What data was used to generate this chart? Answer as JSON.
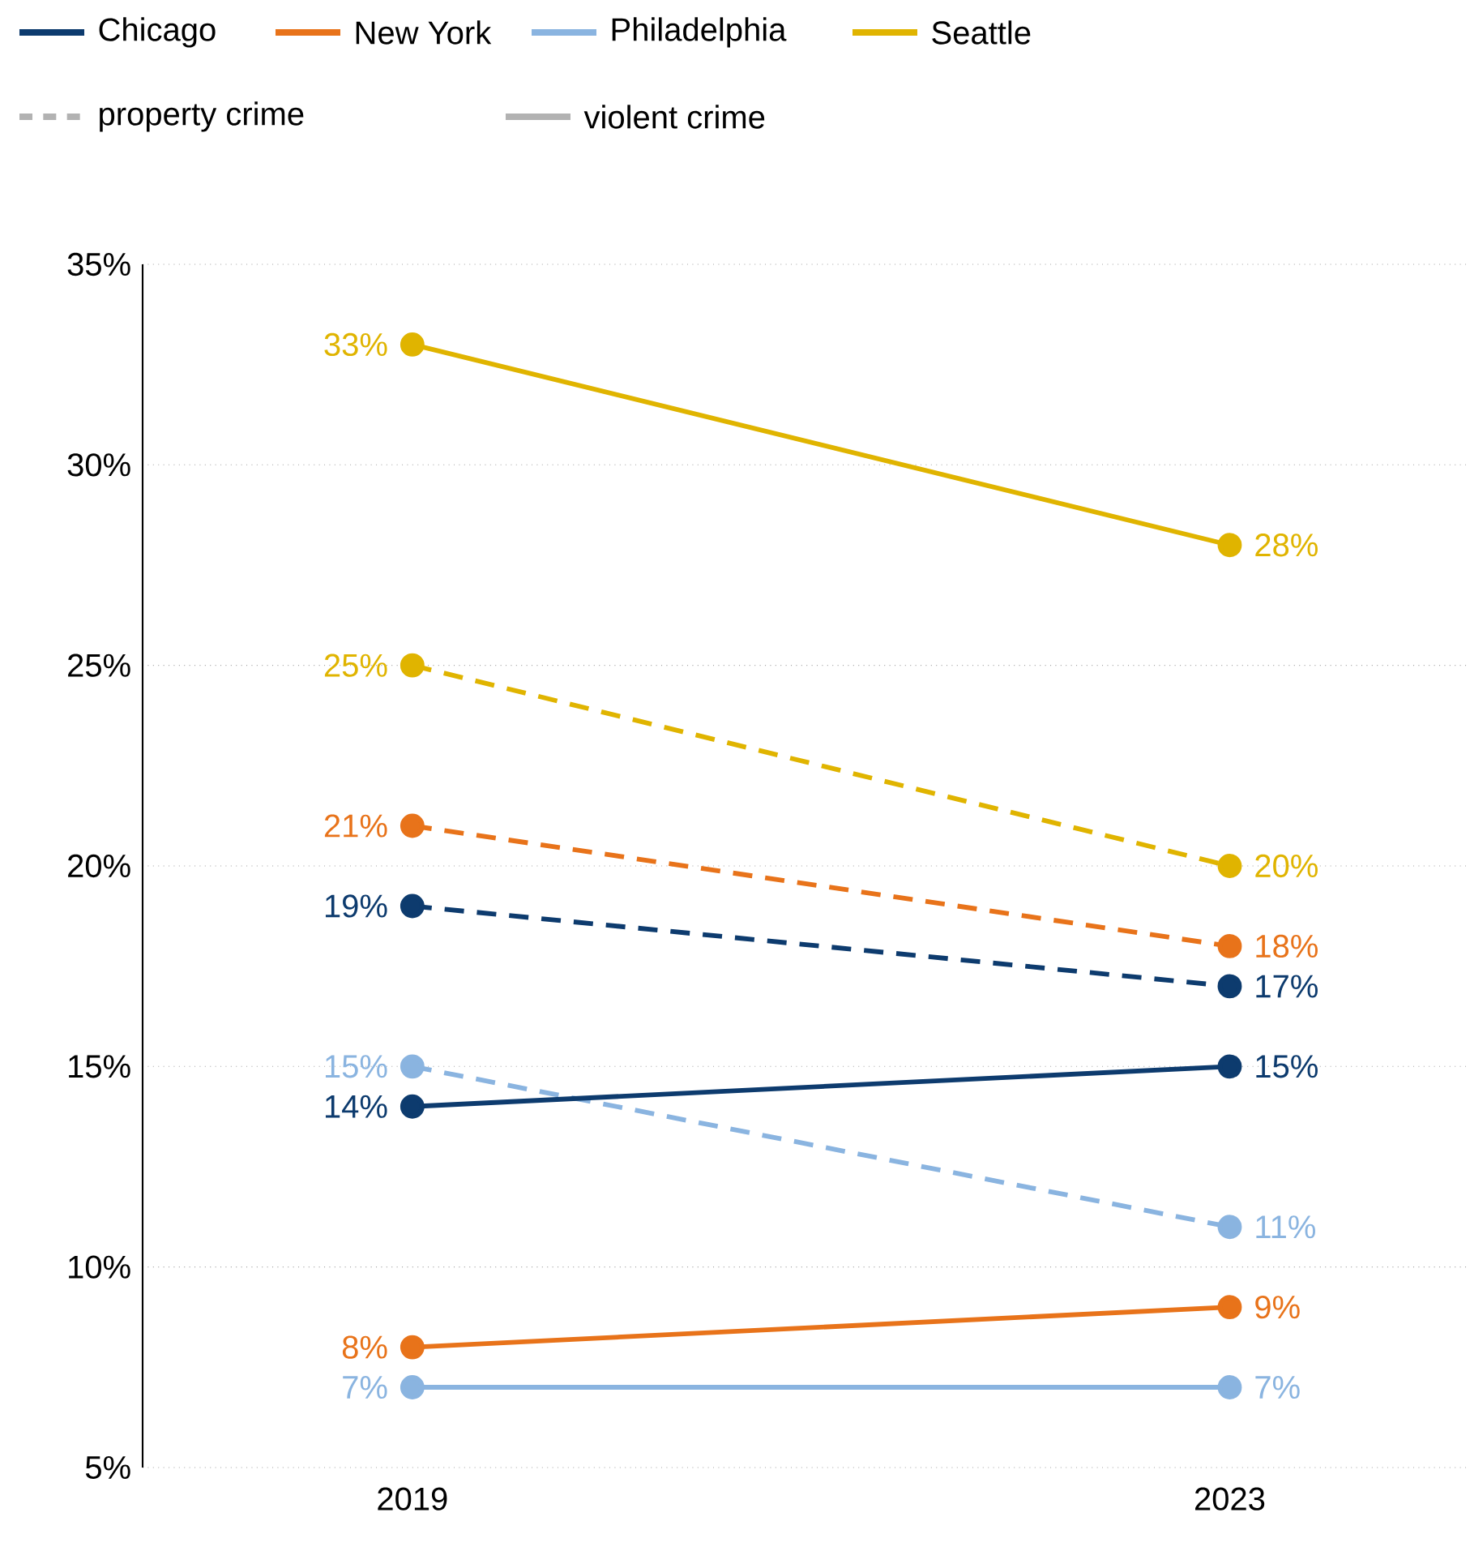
{
  "chart_data": {
    "type": "line",
    "categories": [
      "2019",
      "2023"
    ],
    "ylim": [
      5,
      35
    ],
    "yticks": [
      {
        "value": 5,
        "label": "5%"
      },
      {
        "value": 10,
        "label": "10%"
      },
      {
        "value": 15,
        "label": "15%"
      },
      {
        "value": 20,
        "label": "20%"
      },
      {
        "value": 25,
        "label": "25%"
      },
      {
        "value": 30,
        "label": "30%"
      },
      {
        "value": 35,
        "label": "35%"
      }
    ],
    "grid": "y",
    "legend": "top left",
    "marker": "circle",
    "annotations": [
      "property crime",
      "violent crime"
    ],
    "series": [
      {
        "color": "#e0b400",
        "line_style": "dashed",
        "values": [
          25,
          20
        ],
        "value_labels": [
          "25%",
          "20%"
        ]
      },
      {
        "color": "#e8731a",
        "line_style": "dashed",
        "values": [
          21,
          18
        ],
        "value_labels": [
          "21%",
          "18%"
        ]
      },
      {
        "color": "#0d3b6e",
        "line_style": "dashed",
        "values": [
          19,
          17
        ],
        "value_labels": [
          "19%",
          "17%"
        ]
      },
      {
        "color": "#8ab4e0",
        "line_style": "dashed",
        "values": [
          15,
          11
        ],
        "value_labels": [
          "15%",
          "11%"
        ]
      },
      {
        "name": "Chicago",
        "color": "#0d3b6e",
        "line_style": "solid",
        "values": [
          14,
          15
        ],
        "value_labels": [
          "14%",
          "15%"
        ]
      },
      {
        "name": "New York",
        "color": "#e8731a",
        "line_style": "solid",
        "values": [
          8,
          9
        ],
        "value_labels": [
          "8%",
          "9%"
        ]
      },
      {
        "name": "Philadelphia",
        "color": "#8ab4e0",
        "line_style": "solid",
        "values": [
          7,
          7
        ],
        "value_labels": [
          "7%",
          "7%"
        ]
      },
      {
        "name": "Seattle",
        "color": "#e0b400",
        "line_style": "solid",
        "values": [
          33,
          28
        ],
        "value_labels": [
          "33%",
          "28%"
        ]
      }
    ]
  }
}
